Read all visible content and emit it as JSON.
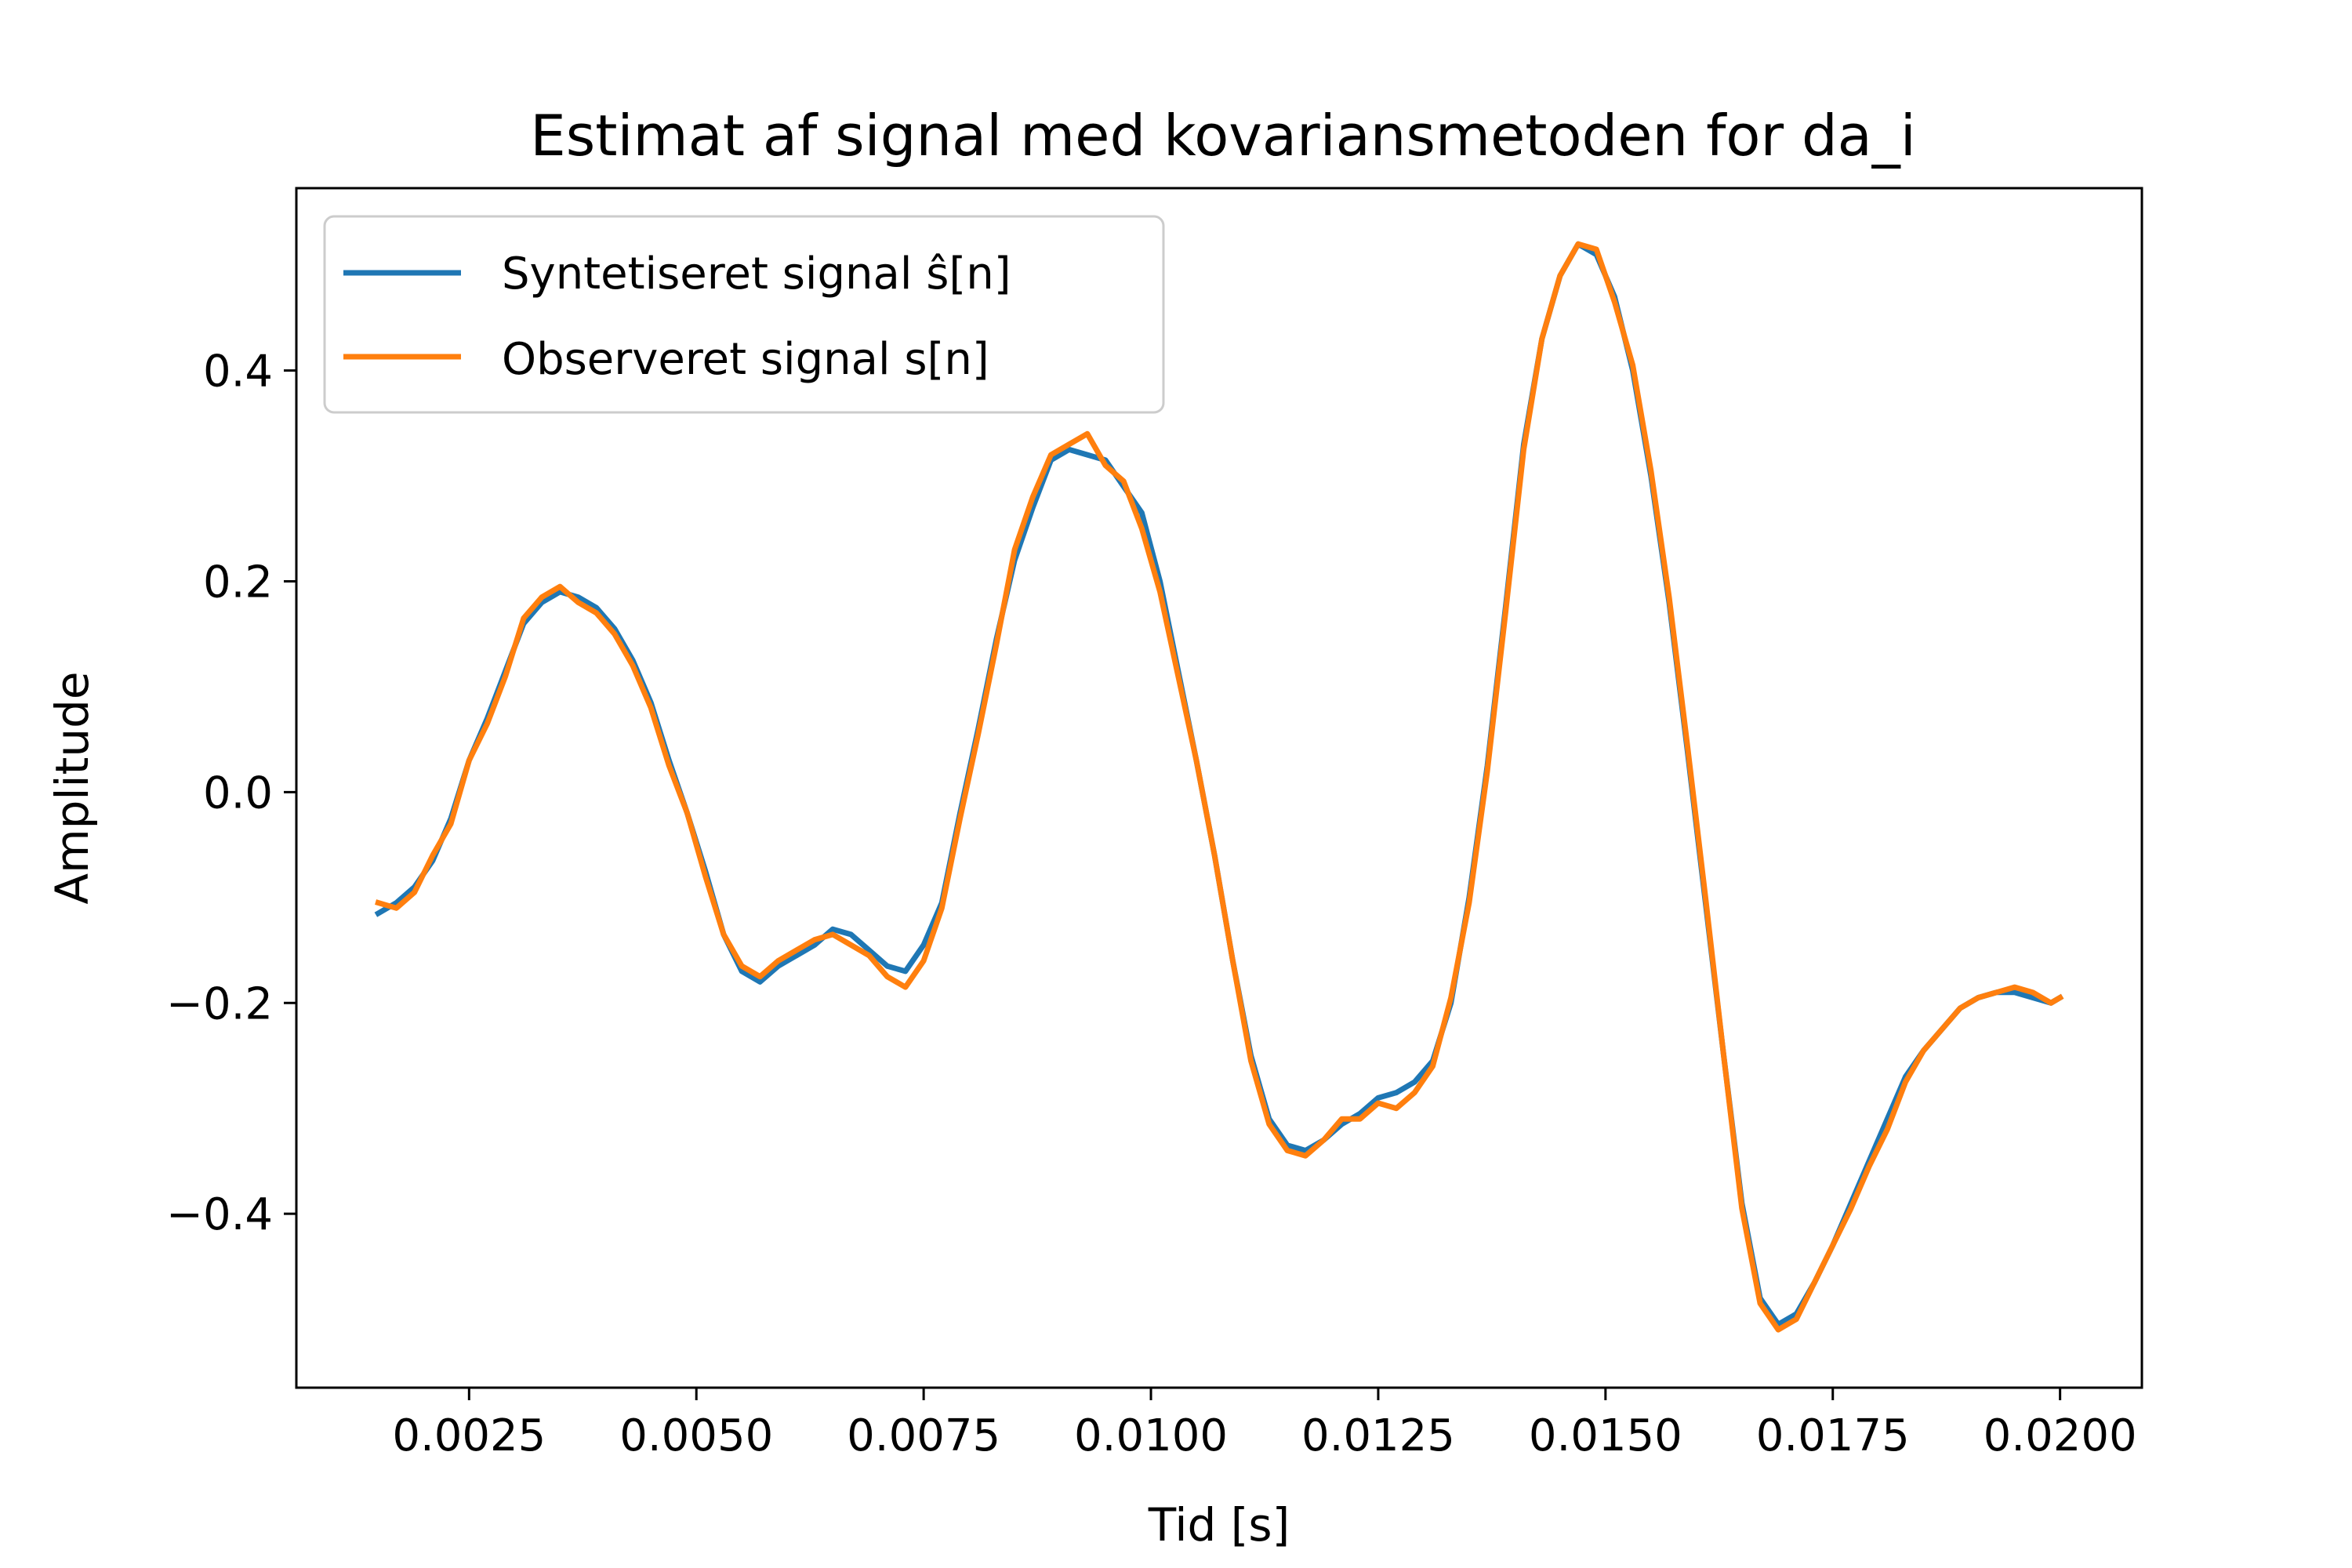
{
  "chart_data": {
    "type": "line",
    "title": "Estimat af signal med kovariansmetoden for da_i",
    "xlabel": "Tid [s]",
    "ylabel": "Amplitude",
    "xlim": [
      0.0006,
      0.0209
    ],
    "ylim": [
      -0.565,
      0.573
    ],
    "xticks": [
      0.0025,
      0.005,
      0.0075,
      0.01,
      0.0125,
      0.015,
      0.0175,
      0.02
    ],
    "xtick_labels": [
      "0.0025",
      "0.0050",
      "0.0075",
      "0.0100",
      "0.0125",
      "0.0150",
      "0.0175",
      "0.0200"
    ],
    "yticks": [
      -0.4,
      -0.2,
      0.0,
      0.2,
      0.4
    ],
    "ytick_labels": [
      "−0.4",
      "−0.2",
      "0.0",
      "0.2",
      "0.4"
    ],
    "grid": false,
    "legend_position": "top-left",
    "series": [
      {
        "name": "Syntetiseret signal ŝ[n]",
        "color": "#1f77b4",
        "x": [
          0.0015,
          0.0017,
          0.0019,
          0.0021,
          0.0023,
          0.0025,
          0.0027,
          0.0029,
          0.0031,
          0.0033,
          0.0035,
          0.0037,
          0.0039,
          0.0041,
          0.0043,
          0.0045,
          0.0047,
          0.0049,
          0.0051,
          0.0053,
          0.0055,
          0.0057,
          0.0059,
          0.0061,
          0.0063,
          0.0065,
          0.0067,
          0.0069,
          0.0071,
          0.0073,
          0.0075,
          0.0077,
          0.0079,
          0.0081,
          0.0083,
          0.0085,
          0.0087,
          0.0089,
          0.0091,
          0.0093,
          0.0095,
          0.0097,
          0.0099,
          0.0101,
          0.0103,
          0.0105,
          0.0107,
          0.0109,
          0.0111,
          0.0113,
          0.0115,
          0.0117,
          0.0119,
          0.0121,
          0.0123,
          0.0125,
          0.0127,
          0.0129,
          0.0131,
          0.0133,
          0.0135,
          0.0137,
          0.0139,
          0.0141,
          0.0143,
          0.0145,
          0.0147,
          0.0149,
          0.0151,
          0.0153,
          0.0155,
          0.0157,
          0.0159,
          0.0161,
          0.0163,
          0.0165,
          0.0167,
          0.0169,
          0.0171,
          0.0173,
          0.0175,
          0.0177,
          0.0179,
          0.0181,
          0.0183,
          0.0185,
          0.0187,
          0.0189,
          0.0191,
          0.0193,
          0.0195,
          0.0197,
          0.0199,
          0.02
        ],
        "y": [
          -0.115,
          -0.105,
          -0.09,
          -0.065,
          -0.025,
          0.03,
          0.07,
          0.115,
          0.16,
          0.18,
          0.19,
          0.185,
          0.175,
          0.155,
          0.125,
          0.085,
          0.03,
          -0.02,
          -0.075,
          -0.135,
          -0.17,
          -0.18,
          -0.165,
          -0.155,
          -0.145,
          -0.13,
          -0.135,
          -0.15,
          -0.165,
          -0.17,
          -0.145,
          -0.105,
          -0.02,
          0.06,
          0.145,
          0.22,
          0.27,
          0.315,
          0.325,
          0.32,
          0.315,
          0.29,
          0.265,
          0.2,
          0.115,
          0.03,
          -0.06,
          -0.16,
          -0.25,
          -0.31,
          -0.335,
          -0.34,
          -0.33,
          -0.315,
          -0.305,
          -0.29,
          -0.285,
          -0.275,
          -0.255,
          -0.2,
          -0.1,
          0.025,
          0.175,
          0.33,
          0.43,
          0.49,
          0.52,
          0.51,
          0.47,
          0.4,
          0.3,
          0.18,
          0.04,
          -0.105,
          -0.25,
          -0.39,
          -0.48,
          -0.505,
          -0.495,
          -0.465,
          -0.43,
          -0.39,
          -0.35,
          -0.31,
          -0.27,
          -0.245,
          -0.225,
          -0.205,
          -0.195,
          -0.19,
          -0.19,
          -0.195,
          -0.2,
          -0.195
        ],
        "y_note_unused": []
      },
      {
        "name": "Observeret signal s[n]",
        "color": "#ff7f0e",
        "x": [
          0.0015,
          0.0017,
          0.0019,
          0.0021,
          0.0023,
          0.0025,
          0.0027,
          0.0029,
          0.0031,
          0.0033,
          0.0035,
          0.0037,
          0.0039,
          0.0041,
          0.0043,
          0.0045,
          0.0047,
          0.0049,
          0.0051,
          0.0053,
          0.0055,
          0.0057,
          0.0059,
          0.0061,
          0.0063,
          0.0065,
          0.0067,
          0.0069,
          0.0071,
          0.0073,
          0.0075,
          0.0077,
          0.0079,
          0.0081,
          0.0083,
          0.0085,
          0.0087,
          0.0089,
          0.0091,
          0.0093,
          0.0095,
          0.0097,
          0.0099,
          0.0101,
          0.0103,
          0.0105,
          0.0107,
          0.0109,
          0.0111,
          0.0113,
          0.0115,
          0.0117,
          0.0119,
          0.0121,
          0.0123,
          0.0125,
          0.0127,
          0.0129,
          0.0131,
          0.0133,
          0.0135,
          0.0137,
          0.0139,
          0.0141,
          0.0143,
          0.0145,
          0.0147,
          0.0149,
          0.0151,
          0.0153,
          0.0155,
          0.0157,
          0.0159,
          0.0161,
          0.0163,
          0.0165,
          0.0167,
          0.0169,
          0.0171,
          0.0173,
          0.0175,
          0.0177,
          0.0179,
          0.0181,
          0.0183,
          0.0185,
          0.0187,
          0.0189,
          0.0191,
          0.0193,
          0.0195,
          0.0197,
          0.0199,
          0.02
        ],
        "y": [
          -0.105,
          -0.11,
          -0.095,
          -0.06,
          -0.03,
          0.03,
          0.065,
          0.11,
          0.165,
          0.185,
          0.195,
          0.18,
          0.17,
          0.15,
          0.12,
          0.08,
          0.025,
          -0.02,
          -0.08,
          -0.135,
          -0.165,
          -0.175,
          -0.16,
          -0.15,
          -0.14,
          -0.135,
          -0.145,
          -0.155,
          -0.175,
          -0.185,
          -0.16,
          -0.11,
          -0.025,
          0.055,
          0.14,
          0.23,
          0.28,
          0.32,
          0.33,
          0.34,
          0.31,
          0.295,
          0.25,
          0.19,
          0.11,
          0.03,
          -0.06,
          -0.16,
          -0.255,
          -0.315,
          -0.34,
          -0.345,
          -0.33,
          -0.31,
          -0.31,
          -0.295,
          -0.3,
          -0.285,
          -0.26,
          -0.195,
          -0.105,
          0.02,
          0.17,
          0.325,
          0.43,
          0.49,
          0.52,
          0.515,
          0.465,
          0.405,
          0.305,
          0.185,
          0.045,
          -0.1,
          -0.25,
          -0.395,
          -0.485,
          -0.51,
          -0.5,
          -0.465,
          -0.43,
          -0.395,
          -0.355,
          -0.32,
          -0.275,
          -0.245,
          -0.225,
          -0.205,
          -0.195,
          -0.19,
          -0.185,
          -0.19,
          -0.2,
          -0.195
        ]
      }
    ]
  }
}
